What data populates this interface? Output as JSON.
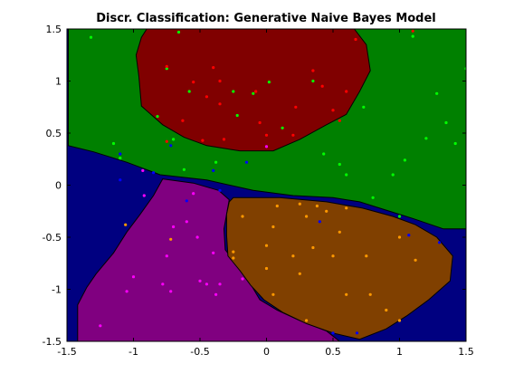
{
  "chart_data": {
    "type": "scatter",
    "title": "Discr. Classification: Generative Naive Bayes Model",
    "xlabel": "",
    "ylabel": "",
    "xlim": [
      -1.5,
      1.5
    ],
    "ylim": [
      -1.5,
      1.5
    ],
    "x_ticks": [
      -1.5,
      -1,
      -0.5,
      0,
      0.5,
      1,
      1.5
    ],
    "x_tick_labels": [
      "-1.5",
      "-1",
      "-0.5",
      "0",
      "0.5",
      "1",
      "1.5"
    ],
    "y_ticks": [
      -1.5,
      -1,
      -0.5,
      0,
      0.5,
      1,
      1.5
    ],
    "y_tick_labels": [
      "-1.5",
      "-1",
      "-0.5",
      "0",
      "0.5",
      "1",
      "1.5"
    ],
    "grid": false,
    "colors": {
      "background_region": "#000080",
      "green_region": "#008000",
      "red_region": "#800000",
      "purple_region": "#800080",
      "brown_region": "#804000",
      "boundary": "#000000"
    },
    "regions": [
      {
        "class": "green",
        "color": "#008000",
        "polygon": [
          [
            -1.49,
            1.5
          ],
          [
            1.5,
            1.5
          ],
          [
            1.5,
            -0.42
          ],
          [
            1.33,
            -0.42
          ],
          [
            1.1,
            -0.32
          ],
          [
            0.9,
            -0.24
          ],
          [
            0.7,
            -0.16
          ],
          [
            0.5,
            -0.12
          ],
          [
            0.2,
            -0.1
          ],
          [
            -0.1,
            -0.05
          ],
          [
            -0.45,
            0.05
          ],
          [
            -0.8,
            0.1
          ],
          [
            -1.05,
            0.22
          ],
          [
            -1.3,
            0.32
          ],
          [
            -1.49,
            0.38
          ]
        ]
      },
      {
        "class": "red",
        "color": "#800000",
        "polygon": [
          [
            -0.9,
            1.5
          ],
          [
            0.66,
            1.5
          ],
          [
            0.75,
            1.35
          ],
          [
            0.78,
            1.1
          ],
          [
            0.7,
            0.9
          ],
          [
            0.6,
            0.68
          ],
          [
            0.45,
            0.58
          ],
          [
            0.25,
            0.44
          ],
          [
            0.05,
            0.33
          ],
          [
            -0.2,
            0.33
          ],
          [
            -0.45,
            0.38
          ],
          [
            -0.62,
            0.46
          ],
          [
            -0.78,
            0.58
          ],
          [
            -0.94,
            0.76
          ],
          [
            -0.96,
            1.05
          ],
          [
            -0.98,
            1.25
          ],
          [
            -0.94,
            1.42
          ]
        ]
      },
      {
        "class": "purple",
        "color": "#800080",
        "polygon": [
          [
            -0.78,
            0.06
          ],
          [
            -0.55,
            0.02
          ],
          [
            -0.36,
            -0.05
          ],
          [
            -0.28,
            -0.14
          ],
          [
            -0.3,
            -0.28
          ],
          [
            -0.32,
            -0.42
          ],
          [
            -0.31,
            -0.62
          ],
          [
            -0.25,
            -0.72
          ],
          [
            -0.18,
            -0.82
          ],
          [
            -0.12,
            -0.95
          ],
          [
            -0.05,
            -1.1
          ],
          [
            0.08,
            -1.2
          ],
          [
            0.25,
            -1.3
          ],
          [
            0.45,
            -1.4
          ],
          [
            0.55,
            -1.5
          ],
          [
            -1.42,
            -1.5
          ],
          [
            -1.42,
            -1.15
          ],
          [
            -1.35,
            -0.98
          ],
          [
            -1.28,
            -0.85
          ],
          [
            -1.15,
            -0.65
          ],
          [
            -1.05,
            -0.45
          ],
          [
            -0.95,
            -0.28
          ],
          [
            -0.85,
            -0.1
          ]
        ]
      },
      {
        "class": "brown",
        "color": "#804000",
        "polygon": [
          [
            -0.25,
            -0.12
          ],
          [
            0.1,
            -0.12
          ],
          [
            0.45,
            -0.16
          ],
          [
            0.72,
            -0.22
          ],
          [
            0.95,
            -0.3
          ],
          [
            1.12,
            -0.38
          ],
          [
            1.28,
            -0.5
          ],
          [
            1.4,
            -0.68
          ],
          [
            1.38,
            -0.92
          ],
          [
            1.22,
            -1.1
          ],
          [
            1.06,
            -1.25
          ],
          [
            0.9,
            -1.38
          ],
          [
            0.7,
            -1.48
          ],
          [
            0.5,
            -1.42
          ],
          [
            0.3,
            -1.33
          ],
          [
            0.12,
            -1.22
          ],
          [
            -0.02,
            -1.1
          ],
          [
            -0.12,
            -0.96
          ],
          [
            -0.2,
            -0.82
          ],
          [
            -0.29,
            -0.68
          ],
          [
            -0.3,
            -0.48
          ],
          [
            -0.3,
            -0.28
          ],
          [
            -0.28,
            -0.16
          ]
        ]
      }
    ],
    "series": [
      {
        "color": "#00ff00",
        "points": [
          [
            -1.32,
            1.42
          ],
          [
            -0.66,
            1.47
          ],
          [
            -0.75,
            1.12
          ],
          [
            0.02,
            0.99
          ],
          [
            -0.25,
            0.9
          ],
          [
            -0.1,
            0.88
          ],
          [
            -0.22,
            0.67
          ],
          [
            0.12,
            0.55
          ],
          [
            0.43,
            0.3
          ],
          [
            1.35,
            0.6
          ],
          [
            1.5,
            1.12
          ],
          [
            1.42,
            0.4
          ],
          [
            1.28,
            0.88
          ],
          [
            1.1,
            1.43
          ],
          [
            1.2,
            0.45
          ],
          [
            0.55,
            0.2
          ],
          [
            0.6,
            0.1
          ],
          [
            1.04,
            0.24
          ],
          [
            0.95,
            0.1
          ],
          [
            0.8,
            -0.12
          ],
          [
            1.0,
            -0.3
          ],
          [
            -1.15,
            0.4
          ],
          [
            -1.1,
            0.26
          ],
          [
            -0.38,
            0.22
          ],
          [
            -0.82,
            0.66
          ],
          [
            -0.7,
            0.44
          ],
          [
            0.73,
            0.75
          ],
          [
            -0.62,
            0.15
          ]
        ]
      },
      {
        "color": "#ff0000",
        "points": [
          -0.0,
          0.0
        ]
      }
    ],
    "points": [
      {
        "x": -1.32,
        "y": 1.42,
        "c": "#00ff00"
      },
      {
        "x": -0.66,
        "y": 1.47,
        "c": "#00ff00"
      },
      {
        "x": -0.75,
        "y": 1.12,
        "c": "#00ff00"
      },
      {
        "x": 0.02,
        "y": 0.99,
        "c": "#00ff00"
      },
      {
        "x": -0.25,
        "y": 0.9,
        "c": "#00ff00"
      },
      {
        "x": -0.1,
        "y": 0.88,
        "c": "#00ff00"
      },
      {
        "x": -0.22,
        "y": 0.67,
        "c": "#00ff00"
      },
      {
        "x": 0.12,
        "y": 0.55,
        "c": "#00ff00"
      },
      {
        "x": 0.43,
        "y": 0.3,
        "c": "#00ff00"
      },
      {
        "x": 1.35,
        "y": 0.6,
        "c": "#00ff00"
      },
      {
        "x": 1.5,
        "y": 1.12,
        "c": "#00ff00"
      },
      {
        "x": 1.42,
        "y": 0.4,
        "c": "#00ff00"
      },
      {
        "x": 1.28,
        "y": 0.88,
        "c": "#00ff00"
      },
      {
        "x": 1.1,
        "y": 1.43,
        "c": "#00ff00"
      },
      {
        "x": 1.2,
        "y": 0.45,
        "c": "#00ff00"
      },
      {
        "x": 0.55,
        "y": 0.2,
        "c": "#00ff00"
      },
      {
        "x": 0.6,
        "y": 0.1,
        "c": "#00ff00"
      },
      {
        "x": 1.04,
        "y": 0.24,
        "c": "#00ff00"
      },
      {
        "x": 0.95,
        "y": 0.1,
        "c": "#00ff00"
      },
      {
        "x": 0.8,
        "y": -0.12,
        "c": "#00ff00"
      },
      {
        "x": 1.0,
        "y": -0.3,
        "c": "#00ff00"
      },
      {
        "x": -1.15,
        "y": 0.4,
        "c": "#00ff00"
      },
      {
        "x": -1.1,
        "y": 0.26,
        "c": "#00ff00"
      },
      {
        "x": -0.38,
        "y": 0.22,
        "c": "#00ff00"
      },
      {
        "x": -0.82,
        "y": 0.66,
        "c": "#00ff00"
      },
      {
        "x": -0.7,
        "y": 0.44,
        "c": "#00ff00"
      },
      {
        "x": 0.73,
        "y": 0.75,
        "c": "#00ff00"
      },
      {
        "x": -0.62,
        "y": 0.15,
        "c": "#00ff00"
      },
      {
        "x": 0.35,
        "y": 1.0,
        "c": "#00ff00"
      },
      {
        "x": -0.58,
        "y": 0.9,
        "c": "#00ff00"
      },
      {
        "x": -0.75,
        "y": 1.14,
        "c": "#ff0000"
      },
      {
        "x": -0.4,
        "y": 1.13,
        "c": "#ff0000"
      },
      {
        "x": -0.55,
        "y": 0.99,
        "c": "#ff0000"
      },
      {
        "x": -0.35,
        "y": 1.0,
        "c": "#ff0000"
      },
      {
        "x": -0.45,
        "y": 0.85,
        "c": "#ff0000"
      },
      {
        "x": -0.08,
        "y": 0.9,
        "c": "#ff0000"
      },
      {
        "x": 0.35,
        "y": 1.1,
        "c": "#ff0000"
      },
      {
        "x": 0.42,
        "y": 0.95,
        "c": "#ff0000"
      },
      {
        "x": 0.6,
        "y": 0.9,
        "c": "#ff0000"
      },
      {
        "x": 0.5,
        "y": 0.72,
        "c": "#ff0000"
      },
      {
        "x": 0.22,
        "y": 0.75,
        "c": "#ff0000"
      },
      {
        "x": -0.63,
        "y": 0.62,
        "c": "#ff0000"
      },
      {
        "x": -0.35,
        "y": 0.78,
        "c": "#ff0000"
      },
      {
        "x": -0.05,
        "y": 0.6,
        "c": "#ff0000"
      },
      {
        "x": 0.2,
        "y": 0.48,
        "c": "#ff0000"
      },
      {
        "x": -0.48,
        "y": 0.43,
        "c": "#ff0000"
      },
      {
        "x": -0.75,
        "y": 0.42,
        "c": "#ff0000"
      },
      {
        "x": 0.67,
        "y": 1.4,
        "c": "#ff0000"
      },
      {
        "x": 1.1,
        "y": 1.48,
        "c": "#ff0000"
      },
      {
        "x": 0.0,
        "y": 0.48,
        "c": "#ff0000"
      },
      {
        "x": -0.32,
        "y": 0.44,
        "c": "#ff0000"
      },
      {
        "x": 0.55,
        "y": 0.62,
        "c": "#ff0000"
      },
      {
        "x": -1.1,
        "y": 0.3,
        "c": "#0000ff"
      },
      {
        "x": -0.72,
        "y": 0.38,
        "c": "#0000ff"
      },
      {
        "x": -0.4,
        "y": 0.14,
        "c": "#0000ff"
      },
      {
        "x": -0.15,
        "y": 0.22,
        "c": "#0000ff"
      },
      {
        "x": -0.6,
        "y": -0.15,
        "c": "#0000ff"
      },
      {
        "x": -0.85,
        "y": 0.12,
        "c": "#0000ff"
      },
      {
        "x": 1.3,
        "y": -0.55,
        "c": "#0000ff"
      },
      {
        "x": 1.07,
        "y": -0.48,
        "c": "#0000ff"
      },
      {
        "x": 0.4,
        "y": -0.35,
        "c": "#0000ff"
      },
      {
        "x": 0.5,
        "y": -1.42,
        "c": "#0000ff"
      },
      {
        "x": 0.68,
        "y": -1.42,
        "c": "#0000ff"
      },
      {
        "x": -1.1,
        "y": 0.05,
        "c": "#0000ff"
      },
      {
        "x": -0.35,
        "y": -0.05,
        "c": "#0000ff"
      },
      {
        "x": -0.92,
        "y": -0.1,
        "c": "#ff00ff"
      },
      {
        "x": -0.55,
        "y": -0.08,
        "c": "#ff00ff"
      },
      {
        "x": -0.6,
        "y": -0.35,
        "c": "#ff00ff"
      },
      {
        "x": -0.7,
        "y": -0.4,
        "c": "#ff00ff"
      },
      {
        "x": -0.52,
        "y": -0.5,
        "c": "#ff00ff"
      },
      {
        "x": -0.75,
        "y": -0.68,
        "c": "#ff00ff"
      },
      {
        "x": -0.4,
        "y": -0.65,
        "c": "#ff00ff"
      },
      {
        "x": -1.0,
        "y": -0.88,
        "c": "#ff00ff"
      },
      {
        "x": -0.78,
        "y": -0.95,
        "c": "#ff00ff"
      },
      {
        "x": -0.5,
        "y": -0.92,
        "c": "#ff00ff"
      },
      {
        "x": -0.35,
        "y": -0.95,
        "c": "#ff00ff"
      },
      {
        "x": -0.38,
        "y": -1.05,
        "c": "#ff00ff"
      },
      {
        "x": -1.05,
        "y": -1.02,
        "c": "#ff00ff"
      },
      {
        "x": -1.25,
        "y": -1.35,
        "c": "#ff00ff"
      },
      {
        "x": -0.72,
        "y": -1.02,
        "c": "#ff00ff"
      },
      {
        "x": -0.18,
        "y": -0.9,
        "c": "#ff00ff"
      },
      {
        "x": -0.45,
        "y": -0.95,
        "c": "#ff00ff"
      },
      {
        "x": 0.0,
        "y": 0.37,
        "c": "#ff00ff"
      },
      {
        "x": -0.93,
        "y": 0.14,
        "c": "#ff00ff"
      },
      {
        "x": -1.06,
        "y": -0.38,
        "c": "#ff9900"
      },
      {
        "x": -0.25,
        "y": -0.64,
        "c": "#ff9900"
      },
      {
        "x": 0.0,
        "y": -0.8,
        "c": "#ff9900"
      },
      {
        "x": 0.2,
        "y": -0.68,
        "c": "#ff9900"
      },
      {
        "x": 0.25,
        "y": -0.85,
        "c": "#ff9900"
      },
      {
        "x": 0.35,
        "y": -0.6,
        "c": "#ff9900"
      },
      {
        "x": 0.5,
        "y": -0.68,
        "c": "#ff9900"
      },
      {
        "x": 0.75,
        "y": -0.68,
        "c": "#ff9900"
      },
      {
        "x": 1.0,
        "y": -0.5,
        "c": "#ff9900"
      },
      {
        "x": 1.12,
        "y": -0.72,
        "c": "#ff9900"
      },
      {
        "x": 0.08,
        "y": -0.2,
        "c": "#ff9900"
      },
      {
        "x": 0.25,
        "y": -0.18,
        "c": "#ff9900"
      },
      {
        "x": 0.38,
        "y": -0.2,
        "c": "#ff9900"
      },
      {
        "x": 0.6,
        "y": -0.22,
        "c": "#ff9900"
      },
      {
        "x": -0.18,
        "y": -0.3,
        "c": "#ff9900"
      },
      {
        "x": 0.05,
        "y": -0.4,
        "c": "#ff9900"
      },
      {
        "x": 0.55,
        "y": -0.45,
        "c": "#ff9900"
      },
      {
        "x": 0.0,
        "y": -0.58,
        "c": "#ff9900"
      },
      {
        "x": 0.6,
        "y": -1.05,
        "c": "#ff9900"
      },
      {
        "x": 0.78,
        "y": -1.05,
        "c": "#ff9900"
      },
      {
        "x": 0.05,
        "y": -1.05,
        "c": "#ff9900"
      },
      {
        "x": 0.3,
        "y": -1.3,
        "c": "#ff9900"
      },
      {
        "x": 0.9,
        "y": -1.2,
        "c": "#ff9900"
      },
      {
        "x": 1.0,
        "y": -1.3,
        "c": "#ff9900"
      },
      {
        "x": 0.3,
        "y": -0.3,
        "c": "#ff9900"
      },
      {
        "x": -0.25,
        "y": -0.7,
        "c": "#ff9900"
      },
      {
        "x": -0.72,
        "y": -0.52,
        "c": "#ff9900"
      },
      {
        "x": 0.45,
        "y": -0.25,
        "c": "#ff9900"
      }
    ]
  }
}
